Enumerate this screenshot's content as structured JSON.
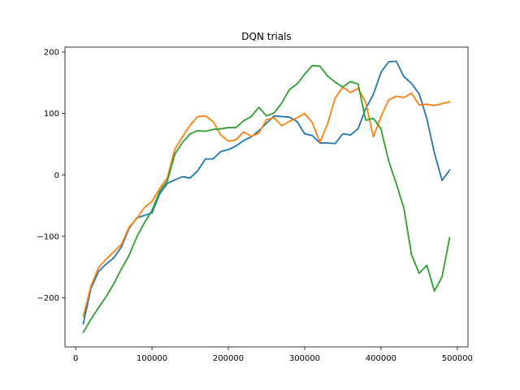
{
  "chart_data": {
    "type": "line",
    "title": "DQN trials",
    "xlabel": "",
    "ylabel": "",
    "xlim": [
      -14000,
      514000
    ],
    "ylim": [
      -280,
      208
    ],
    "xticks": [
      0,
      100000,
      200000,
      300000,
      400000,
      500000
    ],
    "xtick_labels": [
      "0",
      "100000",
      "200000",
      "300000",
      "400000",
      "500000"
    ],
    "yticks": [
      -200,
      -100,
      0,
      100,
      200
    ],
    "ytick_labels": [
      "−200",
      "−100",
      "0",
      "100",
      "200"
    ],
    "grid": false,
    "x": [
      10000,
      20000,
      30000,
      40000,
      50000,
      60000,
      70000,
      80000,
      90000,
      100000,
      110000,
      120000,
      130000,
      140000,
      150000,
      160000,
      170000,
      180000,
      190000,
      200000,
      210000,
      220000,
      230000,
      240000,
      250000,
      260000,
      270000,
      280000,
      290000,
      300000,
      310000,
      320000,
      330000,
      340000,
      350000,
      360000,
      370000,
      380000,
      390000,
      400000,
      410000,
      420000,
      430000,
      440000,
      450000,
      460000,
      470000,
      480000,
      490000
    ],
    "series": [
      {
        "color": "#1f77b4",
        "values": [
          -242,
          -185,
          -157,
          -145,
          -135,
          -117,
          -87,
          -70,
          -66,
          -62,
          -31,
          -14,
          -8,
          -3,
          -5,
          7,
          26,
          26,
          38,
          41,
          47,
          56,
          62,
          72,
          84,
          96,
          95,
          94,
          87,
          67,
          64,
          52,
          52,
          51,
          67,
          65,
          75,
          108,
          131,
          167,
          184,
          185,
          160,
          149,
          132,
          92,
          36,
          -9,
          8
        ]
      },
      {
        "color": "#ff7f0e",
        "values": [
          -230,
          -181,
          -151,
          -137,
          -125,
          -113,
          -85,
          -71,
          -53,
          -43,
          -22,
          -5,
          42,
          62,
          81,
          95,
          96,
          87,
          65,
          55,
          57,
          70,
          63,
          68,
          90,
          93,
          80,
          87,
          93,
          100,
          85,
          53,
          83,
          125,
          143,
          134,
          141,
          118,
          62,
          95,
          122,
          128,
          126,
          133,
          114,
          115,
          113,
          116,
          119
        ]
      },
      {
        "color": "#2ca02c",
        "values": [
          -256,
          -235,
          -216,
          -198,
          -177,
          -153,
          -131,
          -101,
          -78,
          -58,
          -27,
          -10,
          34,
          53,
          67,
          72,
          71,
          74,
          75,
          77,
          77,
          88,
          95,
          110,
          96,
          101,
          117,
          139,
          148,
          164,
          178,
          177,
          161,
          151,
          143,
          152,
          148,
          89,
          92,
          75,
          23,
          -14,
          -54,
          -130,
          -160,
          -147,
          -189,
          -166,
          -102
        ]
      }
    ]
  }
}
